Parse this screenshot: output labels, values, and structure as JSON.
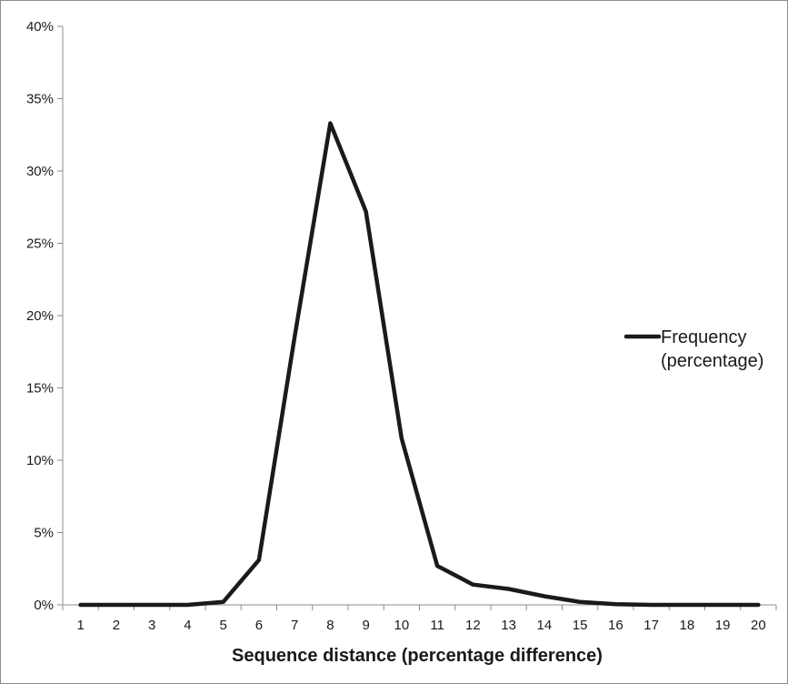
{
  "chart_data": {
    "type": "line",
    "title": "",
    "xlabel": "Sequence distance (percentage difference)",
    "ylabel": "",
    "x": [
      1,
      2,
      3,
      4,
      5,
      6,
      7,
      8,
      9,
      10,
      11,
      12,
      13,
      14,
      15,
      16,
      17,
      18,
      19,
      20
    ],
    "series": [
      {
        "name": "Frequency (percentage)",
        "legend_lines": [
          "Frequency",
          "(percentage)"
        ],
        "color": "#1a1a1a",
        "values": [
          0,
          0,
          0,
          0,
          0.2,
          3.1,
          18.5,
          33.3,
          27.2,
          11.5,
          2.7,
          1.4,
          1.1,
          0.6,
          0.2,
          0.05,
          0,
          0,
          0,
          0
        ]
      }
    ],
    "ylim": [
      0,
      40
    ],
    "yticks": [
      0,
      5,
      10,
      15,
      20,
      25,
      30,
      35,
      40
    ],
    "ytick_labels": [
      "0%",
      "5%",
      "10%",
      "15%",
      "20%",
      "25%",
      "30%",
      "35%",
      "40%"
    ],
    "xtick_labels": [
      "1",
      "2",
      "3",
      "4",
      "5",
      "6",
      "7",
      "8",
      "9",
      "10",
      "11",
      "12",
      "13",
      "14",
      "15",
      "16",
      "17",
      "18",
      "19",
      "20"
    ],
    "grid": false,
    "legend_position": "right"
  },
  "colors": {
    "line": "#1a1a1a",
    "axis": "#8c8c8c",
    "text": "#1a1a1a",
    "background": "#ffffff"
  }
}
